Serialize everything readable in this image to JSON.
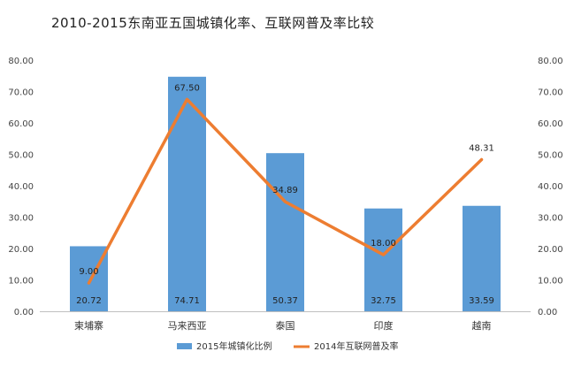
{
  "chart_data": {
    "type": "bar-line",
    "title": "2010-2015东南亚五国城镇化率、互联网普及率比较",
    "categories": [
      "柬埔寨",
      "马来西亚",
      "泰国",
      "印度",
      "越南"
    ],
    "series": [
      {
        "name": "2015年城镇化比例",
        "type": "bar",
        "color": "#5b9bd5",
        "values": [
          20.72,
          74.71,
          50.37,
          32.75,
          33.59
        ],
        "labels": [
          "20.72",
          "74.71",
          "50.37",
          "32.75",
          "33.59"
        ]
      },
      {
        "name": "2014年互联网普及率",
        "type": "line",
        "color": "#ed7d31",
        "values": [
          9.0,
          67.5,
          34.89,
          18.0,
          48.31
        ],
        "labels": [
          "9.00",
          "67.50",
          "34.89",
          "18.00",
          "48.31"
        ]
      }
    ],
    "y_left": {
      "min": 0,
      "max": 80,
      "step": 10,
      "ticks": [
        "0.00",
        "10.00",
        "20.00",
        "30.00",
        "40.00",
        "50.00",
        "60.00",
        "70.00",
        "80.00"
      ]
    },
    "y_right": {
      "min": 0,
      "max": 80,
      "step": 10,
      "ticks": [
        "0.00",
        "10.00",
        "20.00",
        "30.00",
        "40.00",
        "50.00",
        "60.00",
        "70.00",
        "80.00"
      ]
    },
    "grid": false,
    "legend_position": "bottom"
  }
}
